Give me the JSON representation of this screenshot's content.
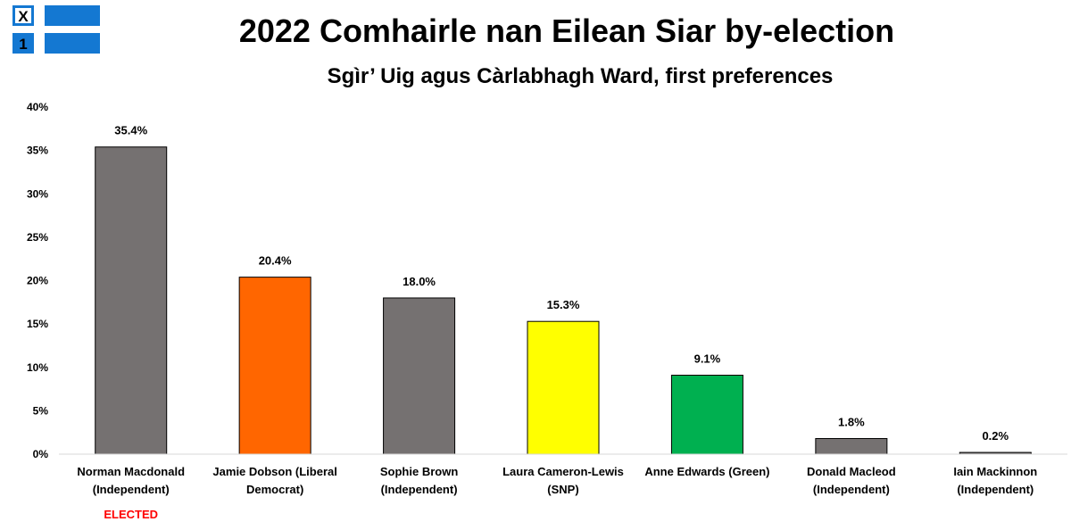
{
  "header": {
    "title": "2022 Comhairle nan Eilean Siar by-election",
    "subtitle": "Sgìr’ Uig agus Càrlabhagh Ward, first preferences"
  },
  "logo": {
    "top_text": "X",
    "bottom_text": "1",
    "color": "#1478d2"
  },
  "chart_data": {
    "type": "bar",
    "title": "2022 Comhairle nan Eilean Siar by-election",
    "subtitle": "Sgìr’ Uig agus Càrlabhagh Ward, first preferences",
    "categories": [
      [
        "Norman Macdonald",
        "(Independent)"
      ],
      [
        "Jamie Dobson (Liberal",
        "Democrat)"
      ],
      [
        "Sophie Brown",
        "(Independent)"
      ],
      [
        "Laura Cameron-Lewis",
        "(SNP)"
      ],
      [
        "Anne Edwards (Green)"
      ],
      [
        "Donald Macleod",
        "(Independent)"
      ],
      [
        "Iain Mackinnon",
        "(Independent)"
      ]
    ],
    "values": [
      35.4,
      20.4,
      18.0,
      15.3,
      9.1,
      1.8,
      0.2
    ],
    "data_labels": [
      "35.4%",
      "20.4%",
      "18.0%",
      "15.3%",
      "9.1%",
      "1.8%",
      "0.2%"
    ],
    "colors": [
      "#757171",
      "#ff6600",
      "#757171",
      "#ffff00",
      "#00b050",
      "#757171",
      "#757171"
    ],
    "notes": [
      "ELECTED",
      "",
      "",
      "",
      "",
      "",
      ""
    ],
    "yticks": [
      "0%",
      "5%",
      "10%",
      "15%",
      "20%",
      "25%",
      "30%",
      "35%",
      "40%"
    ],
    "ylim": [
      0,
      40
    ],
    "xlabel": "",
    "ylabel": "",
    "grid": false,
    "legend": "none"
  }
}
